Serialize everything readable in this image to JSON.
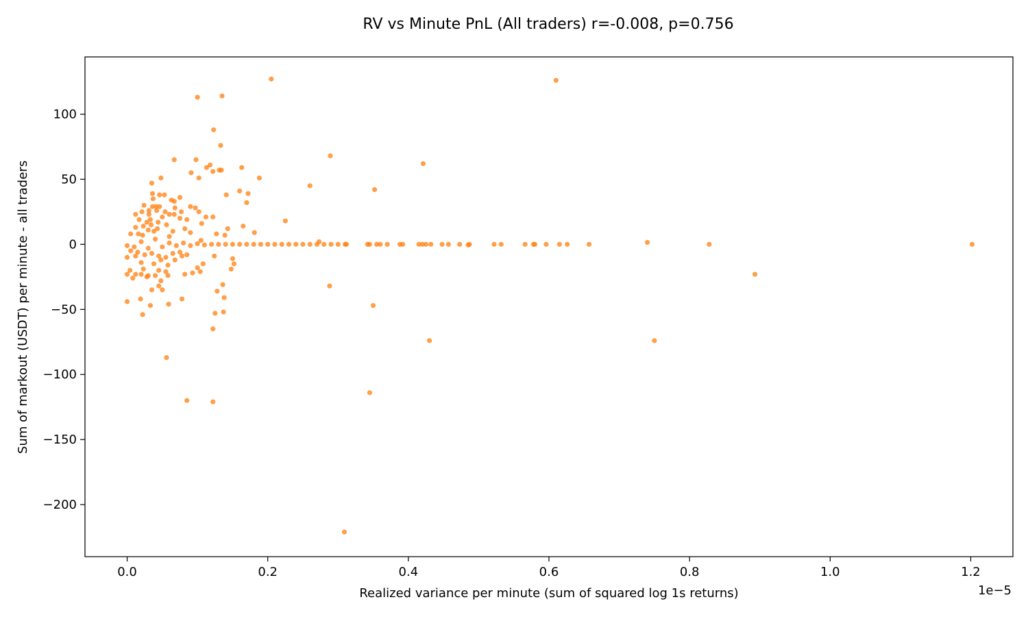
{
  "chart_data": {
    "type": "scatter",
    "title": "RV vs Minute PnL (All traders) r=-0.008, p=0.756",
    "xlabel": "Realized variance per minute (sum of squared log 1s returns)",
    "ylabel": "Sum of markout (USDT) per minute - all traders",
    "x_offset_label": "1e−5",
    "xlim": [
      -0.06,
      1.26
    ],
    "ylim": [
      -240,
      144
    ],
    "x_ticks": [
      0.0,
      0.2,
      0.4,
      0.6,
      0.8,
      1.0,
      1.2
    ],
    "x_tick_labels": [
      "0.0",
      "0.2",
      "0.4",
      "0.6",
      "0.8",
      "1.0",
      "1.2"
    ],
    "y_ticks": [
      -200,
      -150,
      -100,
      -50,
      0,
      50,
      100
    ],
    "y_tick_labels": [
      "−200",
      "−150",
      "−100",
      "−50",
      "0",
      "50",
      "100"
    ],
    "grid": false,
    "marker_color": "#ff7f0e",
    "series": [
      {
        "points": [
          [
            0.205,
            127
          ],
          [
            0.61,
            126
          ],
          [
            0.1,
            113
          ],
          [
            0.135,
            114
          ],
          [
            0.123,
            88
          ],
          [
            0.133,
            76
          ],
          [
            0.067,
            65
          ],
          [
            0.098,
            65
          ],
          [
            0.118,
            61
          ],
          [
            0.113,
            59
          ],
          [
            0.163,
            59
          ],
          [
            0.134,
            57
          ],
          [
            0.131,
            57
          ],
          [
            0.122,
            56
          ],
          [
            0.091,
            55
          ],
          [
            0.102,
            51
          ],
          [
            0.048,
            51
          ],
          [
            0.188,
            51
          ],
          [
            0.289,
            68
          ],
          [
            0.421,
            62
          ],
          [
            0.26,
            45
          ],
          [
            0.352,
            42
          ],
          [
            0.035,
            47
          ],
          [
            0.16,
            41
          ],
          [
            0.036,
            39
          ],
          [
            0.053,
            38
          ],
          [
            0.046,
            38
          ],
          [
            0.172,
            39
          ],
          [
            0.141,
            38
          ],
          [
            0.075,
            36
          ],
          [
            0.037,
            35
          ],
          [
            0.063,
            34
          ],
          [
            0.067,
            33
          ],
          [
            0.17,
            32
          ],
          [
            0.024,
            30
          ],
          [
            0.036,
            29
          ],
          [
            0.041,
            29
          ],
          [
            0.09,
            29
          ],
          [
            0.097,
            28
          ],
          [
            0.046,
            29
          ],
          [
            0.068,
            28
          ],
          [
            0.021,
            25
          ],
          [
            0.031,
            26
          ],
          [
            0.042,
            26
          ],
          [
            0.054,
            25
          ],
          [
            0.077,
            25
          ],
          [
            0.102,
            25
          ],
          [
            0.012,
            23
          ],
          [
            0.031,
            23
          ],
          [
            0.067,
            23
          ],
          [
            0.06,
            23
          ],
          [
            0.112,
            21
          ],
          [
            0.122,
            21
          ],
          [
            0.05,
            21
          ],
          [
            0.075,
            20
          ],
          [
            0.085,
            19
          ],
          [
            0.033,
            19
          ],
          [
            0.017,
            19
          ],
          [
            0.044,
            17
          ],
          [
            0.028,
            17
          ],
          [
            0.225,
            18
          ],
          [
            0.106,
            16
          ],
          [
            0.034,
            15
          ],
          [
            0.056,
            15
          ],
          [
            0.023,
            14
          ],
          [
            0.165,
            14
          ],
          [
            0.143,
            12
          ],
          [
            0.082,
            12
          ],
          [
            0.012,
            13
          ],
          [
            0.043,
            12
          ],
          [
            0.03,
            11
          ],
          [
            0.038,
            10
          ],
          [
            0.065,
            10
          ],
          [
            0.181,
            9
          ],
          [
            0.127,
            8
          ],
          [
            0.09,
            9
          ],
          [
            0.005,
            8
          ],
          [
            0.016,
            8
          ],
          [
            0.022,
            7
          ],
          [
            0.139,
            7
          ],
          [
            0.06,
            6
          ],
          [
            0.105,
            3
          ],
          [
            0.273,
            2
          ],
          [
            0.74,
            1.5
          ],
          [
            0.0,
            -1
          ],
          [
            0.01,
            -2
          ],
          [
            0.02,
            2
          ],
          [
            0.03,
            -3
          ],
          [
            0.04,
            4
          ],
          [
            0.05,
            -2
          ],
          [
            0.06,
            1
          ],
          [
            0.07,
            -1
          ],
          [
            0.08,
            1
          ],
          [
            0.09,
            -1
          ],
          [
            0.1,
            0.5
          ],
          [
            0.11,
            -0.5
          ],
          [
            0.12,
            0
          ],
          [
            0.13,
            0
          ],
          [
            0.14,
            0
          ],
          [
            0.15,
            0
          ],
          [
            0.16,
            0
          ],
          [
            0.17,
            0
          ],
          [
            0.18,
            0
          ],
          [
            0.19,
            0
          ],
          [
            0.2,
            0
          ],
          [
            0.21,
            0
          ],
          [
            0.22,
            0
          ],
          [
            0.23,
            0
          ],
          [
            0.24,
            0
          ],
          [
            0.25,
            0
          ],
          [
            0.26,
            0
          ],
          [
            0.27,
            0
          ],
          [
            0.28,
            0
          ],
          [
            0.29,
            0
          ],
          [
            0.3,
            0
          ],
          [
            0.31,
            0
          ],
          [
            0.312,
            0
          ],
          [
            0.342,
            0
          ],
          [
            0.345,
            0
          ],
          [
            0.355,
            0
          ],
          [
            0.36,
            0
          ],
          [
            0.37,
            0
          ],
          [
            0.388,
            0
          ],
          [
            0.392,
            0
          ],
          [
            0.415,
            0
          ],
          [
            0.42,
            0
          ],
          [
            0.425,
            0
          ],
          [
            0.432,
            0
          ],
          [
            0.448,
            0
          ],
          [
            0.457,
            0
          ],
          [
            0.473,
            0
          ],
          [
            0.485,
            -0.5
          ],
          [
            0.487,
            0
          ],
          [
            0.522,
            0
          ],
          [
            0.532,
            0
          ],
          [
            0.566,
            0
          ],
          [
            0.578,
            0
          ],
          [
            0.58,
            0
          ],
          [
            0.596,
            0
          ],
          [
            0.615,
            0
          ],
          [
            0.626,
            0
          ],
          [
            0.657,
            0
          ],
          [
            0.828,
            0
          ],
          [
            1.202,
            0
          ],
          [
            0.005,
            -5
          ],
          [
            0.015,
            -6
          ],
          [
            0.025,
            -8
          ],
          [
            0.035,
            -7
          ],
          [
            0.045,
            -9
          ],
          [
            0.055,
            -10
          ],
          [
            0.065,
            -7
          ],
          [
            0.075,
            -6
          ],
          [
            0.085,
            -8
          ],
          [
            0.0,
            -10
          ],
          [
            0.012,
            -9
          ],
          [
            0.048,
            -12
          ],
          [
            0.078,
            -9
          ],
          [
            0.124,
            -9
          ],
          [
            0.15,
            -11
          ],
          [
            0.152,
            -15
          ],
          [
            0.02,
            -14
          ],
          [
            0.038,
            -15
          ],
          [
            0.058,
            -16
          ],
          [
            0.068,
            -12
          ],
          [
            0.108,
            -15
          ],
          [
            0.148,
            -19
          ],
          [
            0.1,
            -18
          ],
          [
            0.004,
            -20
          ],
          [
            0.045,
            -20
          ],
          [
            0.055,
            -21
          ],
          [
            0.023,
            -19
          ],
          [
            0.012,
            -23
          ],
          [
            0.02,
            -23
          ],
          [
            0.028,
            -25
          ],
          [
            0.04,
            -24
          ],
          [
            0.0,
            -23
          ],
          [
            0.058,
            -24
          ],
          [
            0.082,
            -23
          ],
          [
            0.093,
            -22
          ],
          [
            0.104,
            -21
          ],
          [
            0.008,
            -26
          ],
          [
            0.03,
            -24
          ],
          [
            0.048,
            -28
          ],
          [
            0.136,
            -31
          ],
          [
            0.045,
            -32
          ],
          [
            0.035,
            -35
          ],
          [
            0.05,
            -35
          ],
          [
            0.128,
            -36
          ],
          [
            0.288,
            -32
          ],
          [
            0.893,
            -23
          ],
          [
            0.138,
            -41
          ],
          [
            0.078,
            -42
          ],
          [
            0.019,
            -42
          ],
          [
            0.0,
            -44
          ],
          [
            0.059,
            -46
          ],
          [
            0.033,
            -47
          ],
          [
            0.35,
            -47
          ],
          [
            0.137,
            -52
          ],
          [
            0.125,
            -53
          ],
          [
            0.022,
            -54
          ],
          [
            0.122,
            -65
          ],
          [
            0.43,
            -74
          ],
          [
            0.75,
            -74
          ],
          [
            0.056,
            -87
          ],
          [
            0.345,
            -114
          ],
          [
            0.085,
            -120
          ],
          [
            0.122,
            -121
          ],
          [
            0.309,
            -221
          ]
        ]
      }
    ]
  }
}
